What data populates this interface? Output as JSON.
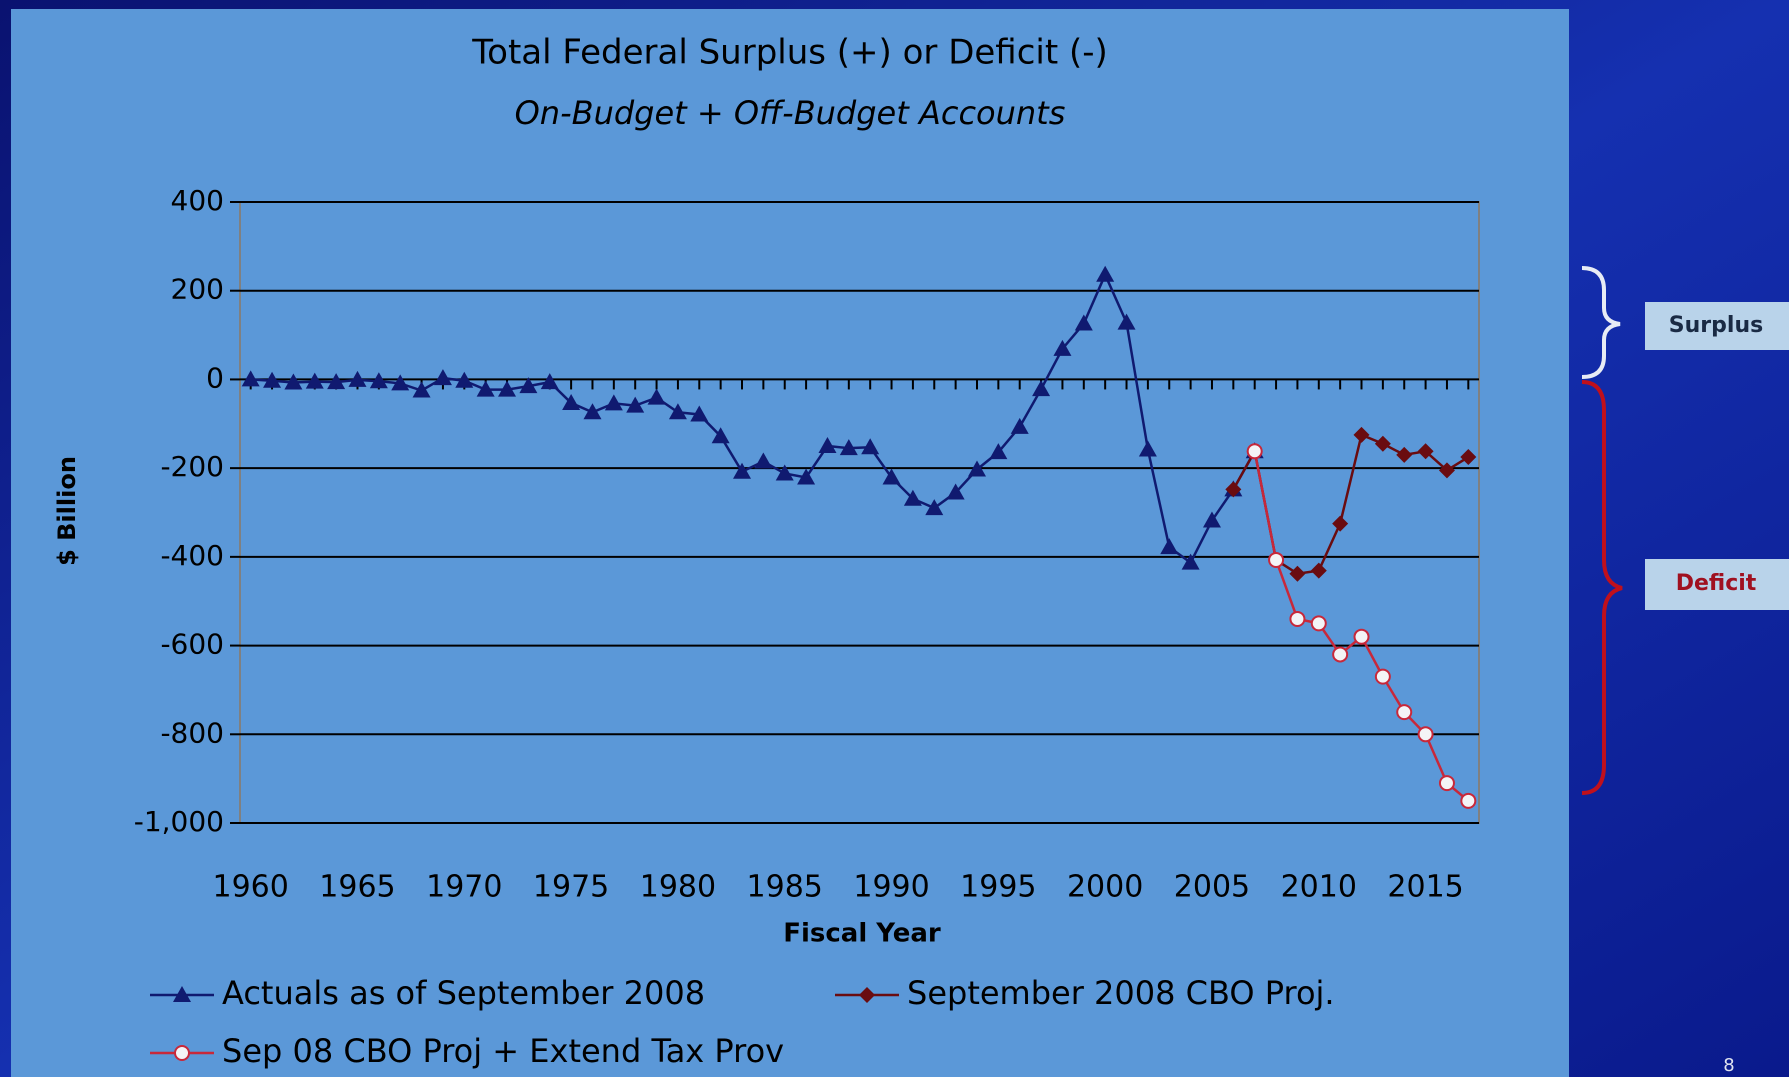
{
  "chart_data": {
    "type": "line",
    "title": "Total Federal Surplus (+) or Deficit (-)",
    "subtitle": "On-Budget + Off-Budget Accounts",
    "x_label": "Fiscal Year",
    "y_label": "$ Billion",
    "x": [
      1960,
      1961,
      1962,
      1963,
      1964,
      1965,
      1966,
      1967,
      1968,
      1969,
      1970,
      1971,
      1972,
      1973,
      1974,
      1975,
      1976,
      1977,
      1978,
      1979,
      1980,
      1981,
      1982,
      1983,
      1984,
      1985,
      1986,
      1987,
      1988,
      1989,
      1990,
      1991,
      1992,
      1993,
      1994,
      1995,
      1996,
      1997,
      1998,
      1999,
      2000,
      2001,
      2002,
      2003,
      2004,
      2005,
      2006,
      2007,
      2008,
      2009,
      2010,
      2011,
      2012,
      2013,
      2014,
      2015,
      2016,
      2017
    ],
    "xlim": [
      1959.5,
      2017.5
    ],
    "xticks": [
      1960,
      1965,
      1970,
      1975,
      1980,
      1985,
      1990,
      1995,
      2000,
      2005,
      2010,
      2015
    ],
    "ylim": [
      -1000,
      400
    ],
    "yticks": [
      400,
      200,
      0,
      -200,
      -400,
      -600,
      -800,
      {
        "value": -1000,
        "label": "-1,000"
      }
    ],
    "grid": true,
    "legend": "bottom",
    "series": [
      {
        "name": "Actuals as of September 2008",
        "color": "#101a70",
        "marker": "triangle",
        "values": [
          0,
          -3,
          -7,
          -5,
          -6,
          -1,
          -4,
          -9,
          -25,
          3,
          -3,
          -23,
          -23,
          -15,
          -6,
          -53,
          -74,
          -54,
          -59,
          -41,
          -74,
          -79,
          -128,
          -208,
          -185,
          -212,
          -221,
          -150,
          -155,
          -153,
          -221,
          -269,
          -290,
          -255,
          -203,
          -164,
          -107,
          -22,
          69,
          126,
          236,
          128,
          -158,
          -378,
          -413,
          -318,
          -248,
          -162,
          null,
          null,
          null,
          null,
          null,
          null,
          null,
          null,
          null,
          null
        ]
      },
      {
        "name": "September 2008 CBO Proj.",
        "color": "#6a0c10",
        "marker": "diamond",
        "values": [
          null,
          null,
          null,
          null,
          null,
          null,
          null,
          null,
          null,
          null,
          null,
          null,
          null,
          null,
          null,
          null,
          null,
          null,
          null,
          null,
          null,
          null,
          null,
          null,
          null,
          null,
          null,
          null,
          null,
          null,
          null,
          null,
          null,
          null,
          null,
          null,
          null,
          null,
          null,
          null,
          null,
          null,
          null,
          null,
          null,
          null,
          -248,
          -162,
          -407,
          -438,
          -431,
          -325,
          -125,
          -145,
          -170,
          -162,
          -205,
          -175
        ]
      },
      {
        "name": "Sep 08 CBO Proj + Extend Tax Prov",
        "color": "#c8283a",
        "marker": "circle",
        "values": [
          null,
          null,
          null,
          null,
          null,
          null,
          null,
          null,
          null,
          null,
          null,
          null,
          null,
          null,
          null,
          null,
          null,
          null,
          null,
          null,
          null,
          null,
          null,
          null,
          null,
          null,
          null,
          null,
          null,
          null,
          null,
          null,
          null,
          null,
          null,
          null,
          null,
          null,
          null,
          null,
          null,
          null,
          null,
          null,
          null,
          null,
          null,
          -162,
          -407,
          -540,
          -550,
          -620,
          -580,
          -670,
          -750,
          -800,
          -910,
          -950
        ]
      }
    ]
  },
  "annotations": {
    "surplus": "Surplus",
    "deficit": "Deficit",
    "slide_number": "8"
  }
}
